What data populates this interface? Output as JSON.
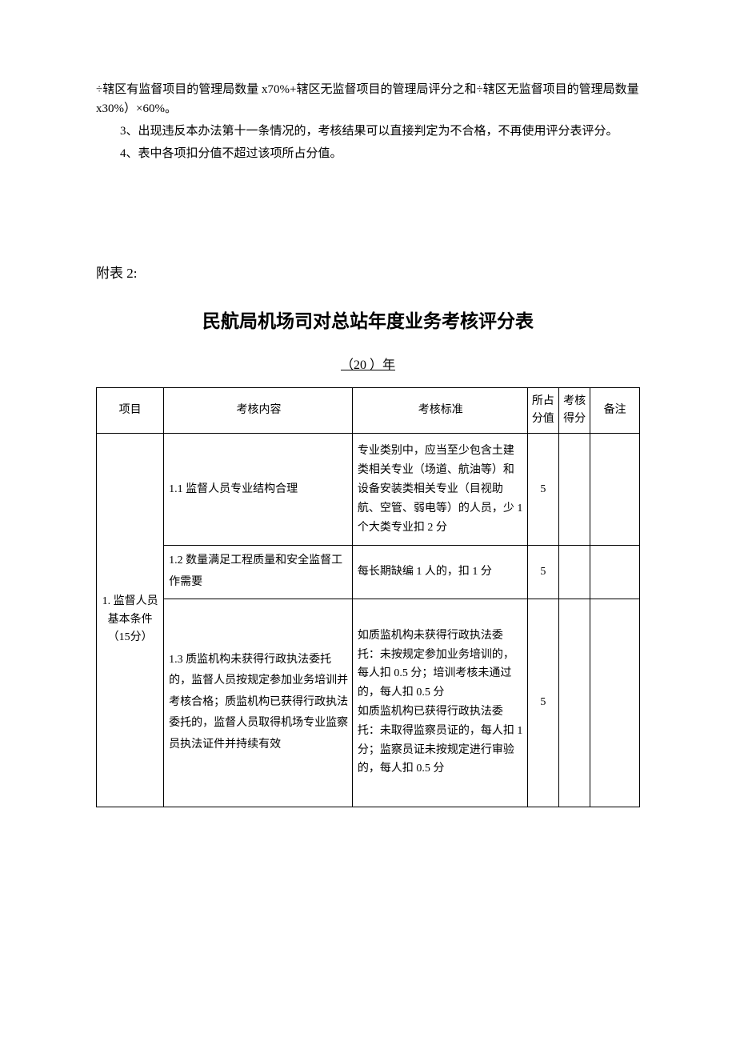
{
  "intro": {
    "line1": "÷辖区有监督项目的管理局数量 x70%+辖区无监督项目的管理局评分之和÷辖区无监督项目的管理局数量 x30%）×60%。",
    "line2": "3、出现违反本办法第十一条情况的，考核结果可以直接判定为不合格，不再使用评分表评分。",
    "line3": "4、表中各项扣分值不超过该项所占分值。"
  },
  "attachment_label": "附表 2:",
  "title": "民航局机场司对总站年度业务考核评分表",
  "year_prefix": "（20",
  "year_suffix": "）年",
  "year_blank": "        ",
  "table": {
    "headers": {
      "item": "项目",
      "content": "考核内容",
      "standard": "考核标准",
      "weight": "所占分值",
      "score": "考核得分",
      "note": "备注"
    },
    "section1": {
      "label": "1. 监督人员基本条件（15分）",
      "rows": [
        {
          "content": "1.1 监督人员专业结构合理",
          "standard": "专业类别中，应当至少包含土建类相关专业（场道、航油等）和设备安装类相关专业（目视助航、空管、弱电等）的人员，少 1 个大类专业扣 2 分",
          "weight": "5"
        },
        {
          "content": "1.2 数量满足工程质量和安全监督工作需要",
          "standard": "每长期缺编 1 人的，扣 1 分",
          "weight": "5"
        },
        {
          "content": "1.3 质监机构未获得行政执法委托的，监督人员按规定参加业务培训并考核合格；质监机构已获得行政执法委托的，监督人员取得机场专业监察员执法证件并持续有效",
          "standard": "如质监机构未获得行政执法委托：未按规定参加业务培训的，每人扣 0.5 分；培训考核未通过的，每人扣 0.5 分\n如质监机构已获得行政执法委托：未取得监察员证的，每人扣 1 分；监察员证未按规定进行审验的，每人扣 0.5 分",
          "weight": "5"
        }
      ]
    }
  }
}
